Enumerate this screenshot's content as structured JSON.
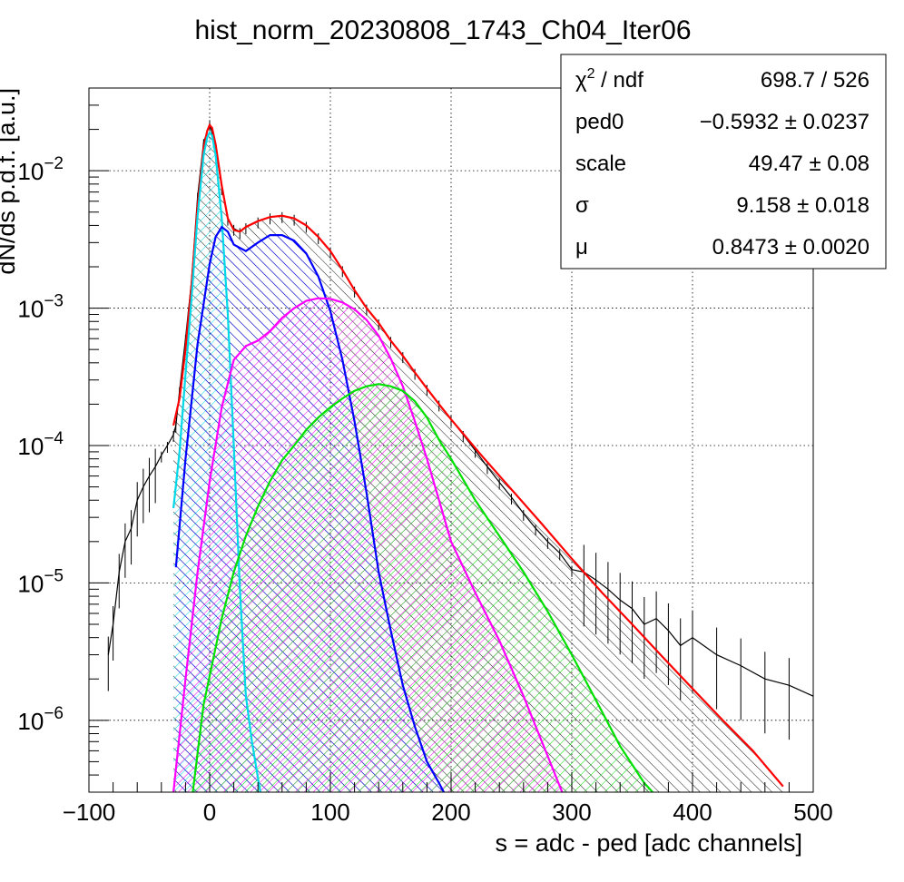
{
  "chart_data": {
    "type": "line",
    "title": "hist_norm_20230808_1743_Ch04_Iter06",
    "xlabel": "s = adc - ped [adc channels]",
    "ylabel": "dN/ds p.d.f. [a.u.]",
    "xlim": [
      -100,
      500
    ],
    "ylim": [
      3e-07,
      0.04
    ],
    "y_scale": "log",
    "grid": true,
    "x_ticks": [
      {
        "value": -100,
        "label": "−100"
      },
      {
        "value": 0,
        "label": "0"
      },
      {
        "value": 100,
        "label": "100"
      },
      {
        "value": 200,
        "label": "200"
      },
      {
        "value": 300,
        "label": "300"
      },
      {
        "value": 400,
        "label": "400"
      },
      {
        "value": 500,
        "label": "500"
      }
    ],
    "y_ticks": [
      {
        "value": 1e-06,
        "base": "10",
        "exp": "−6"
      },
      {
        "value": 1e-05,
        "base": "10",
        "exp": "−5"
      },
      {
        "value": 0.0001,
        "base": "10",
        "exp": "−4"
      },
      {
        "value": 0.001,
        "base": "10",
        "exp": "−3"
      },
      {
        "value": 0.01,
        "base": "10",
        "exp": "−2"
      }
    ],
    "stats_box": {
      "position": "top-right",
      "rows": [
        {
          "label": "χ",
          "label_sup": "2",
          "label_rest": " / ndf",
          "value": "698.7 / 526"
        },
        {
          "label": "ped0",
          "label_sup": "",
          "label_rest": "",
          "value": "−0.5932 ± 0.0237"
        },
        {
          "label": "scale",
          "label_sup": "",
          "label_rest": "",
          "value": "49.47 ± 0.08"
        },
        {
          "label": "σ",
          "label_sup": "",
          "label_rest": "",
          "value": "9.158 ± 0.018"
        },
        {
          "label": "μ",
          "label_sup": "",
          "label_rest": "",
          "value": "0.8473 ± 0.0020"
        }
      ]
    },
    "series": [
      {
        "kind": "histogram",
        "color": "#000000",
        "x": [
          -84,
          -80,
          -75,
          -70,
          -65,
          -60,
          -55,
          -50,
          -45,
          -40,
          -35,
          -30,
          -28,
          -25,
          -20,
          -15,
          -10,
          -5,
          0,
          5,
          10,
          15,
          20,
          25,
          30,
          40,
          50,
          60,
          70,
          80,
          90,
          100,
          110,
          120,
          130,
          140,
          150,
          160,
          170,
          180,
          190,
          200,
          210,
          220,
          230,
          240,
          250,
          260,
          270,
          280,
          290,
          300,
          310,
          320,
          330,
          340,
          350,
          360,
          370,
          380,
          390,
          400,
          420,
          440,
          460,
          480,
          500
        ],
        "y": [
          3e-06,
          5e-06,
          1.2e-05,
          2e-05,
          2.5e-05,
          4e-05,
          5e-05,
          6e-05,
          7e-05,
          8.5e-05,
          0.0001,
          0.00012,
          0.00014,
          0.00025,
          0.0006,
          0.0016,
          0.0065,
          0.016,
          0.022,
          0.015,
          0.0075,
          0.0045,
          0.0038,
          0.0036,
          0.0039,
          0.0043,
          0.0046,
          0.0047,
          0.0045,
          0.004,
          0.0033,
          0.0026,
          0.0019,
          0.00135,
          0.001,
          0.00078,
          0.00058,
          0.00045,
          0.00034,
          0.00026,
          0.0002,
          0.000155,
          0.00012,
          9.2e-05,
          7e-05,
          5.4e-05,
          4.2e-05,
          3.2e-05,
          2.5e-05,
          2e-05,
          1.65e-05,
          1.25e-05,
          1.2e-05,
          1.05e-05,
          9e-06,
          7.5e-06,
          6.5e-06,
          5e-06,
          5.5e-06,
          4.5e-06,
          3.5e-06,
          4e-06,
          3e-06,
          2.5e-06,
          2e-06,
          1.8e-06,
          1.5e-06
        ]
      },
      {
        "kind": "fit-total",
        "color": "#ff0000",
        "x": [
          -30,
          -25,
          -20,
          -15,
          -10,
          -5,
          -2,
          0,
          2,
          5,
          10,
          15,
          20,
          25,
          30,
          40,
          50,
          60,
          70,
          80,
          90,
          100,
          110,
          120,
          130,
          140,
          150,
          160,
          170,
          180,
          190,
          200,
          225,
          250,
          275,
          300,
          325,
          350,
          375,
          400,
          425,
          450,
          475
        ],
        "y": [
          0.00014,
          0.00022,
          0.0005,
          0.0015,
          0.0055,
          0.0145,
          0.0195,
          0.0215,
          0.0205,
          0.0155,
          0.0078,
          0.0045,
          0.0037,
          0.0036,
          0.0039,
          0.0043,
          0.0046,
          0.0047,
          0.0045,
          0.004,
          0.0033,
          0.0026,
          0.0019,
          0.00135,
          0.001,
          0.00078,
          0.00058,
          0.00045,
          0.00034,
          0.00026,
          0.0002,
          0.000155,
          8.5e-05,
          4.8e-05,
          2.7e-05,
          1.5e-05,
          8.5e-06,
          5e-06,
          2.9e-06,
          1.7e-06,
          1e-06,
          6e-07,
          3.3e-07
        ]
      },
      {
        "kind": "component",
        "color": "#00d8e8",
        "x": [
          -30,
          -25,
          -20,
          -15,
          -10,
          -5,
          -2,
          0,
          2,
          5,
          10,
          15,
          20,
          25,
          30,
          35,
          40,
          42
        ],
        "y": [
          3.5e-05,
          9e-05,
          0.00033,
          0.0012,
          0.0047,
          0.013,
          0.0175,
          0.019,
          0.018,
          0.013,
          0.0045,
          0.0009,
          0.0001,
          9e-06,
          1.5e-06,
          7e-07,
          3.8e-07,
          3e-07
        ]
      },
      {
        "kind": "component",
        "color": "#0000ff",
        "x": [
          -28,
          -20,
          -10,
          0,
          5,
          10,
          15,
          20,
          30,
          40,
          50,
          60,
          70,
          80,
          90,
          100,
          110,
          120,
          130,
          140,
          150,
          160,
          170,
          180,
          190,
          194
        ],
        "y": [
          1.3e-05,
          8e-05,
          0.00055,
          0.0021,
          0.0033,
          0.0039,
          0.0036,
          0.0029,
          0.0026,
          0.003,
          0.0034,
          0.0034,
          0.0031,
          0.0025,
          0.0017,
          0.00095,
          0.00042,
          0.00015,
          4.5e-05,
          1.2e-05,
          4.5e-06,
          1.8e-06,
          9e-07,
          5e-07,
          3.5e-07,
          3e-07
        ]
      },
      {
        "kind": "component",
        "color": "#ff00ff",
        "x": [
          -30,
          -20,
          -10,
          0,
          10,
          20,
          30,
          40,
          50,
          60,
          70,
          80,
          90,
          100,
          110,
          120,
          130,
          140,
          150,
          160,
          170,
          180,
          190,
          200,
          220,
          240,
          260,
          280,
          292
        ],
        "y": [
          3e-07,
          2e-06,
          1.2e-05,
          5.5e-05,
          0.00019,
          0.00042,
          0.00053,
          0.00058,
          0.00068,
          0.00085,
          0.001,
          0.00113,
          0.00118,
          0.00117,
          0.0011,
          0.00098,
          0.00082,
          0.00063,
          0.00043,
          0.00027,
          0.00015,
          8e-05,
          4e-05,
          2e-05,
          8.5e-06,
          3.8e-06,
          1.5e-06,
          5.5e-07,
          3e-07
        ]
      },
      {
        "kind": "component",
        "color": "#00e000",
        "x": [
          -14,
          -5,
          10,
          20,
          30,
          40,
          50,
          60,
          70,
          80,
          90,
          100,
          110,
          120,
          130,
          140,
          150,
          160,
          170,
          180,
          190,
          200,
          220,
          240,
          260,
          280,
          300,
          320,
          340,
          360,
          367
        ],
        "y": [
          3e-07,
          1.3e-06,
          5.5e-06,
          1.2e-05,
          2.2e-05,
          3.6e-05,
          5.5e-05,
          7.8e-05,
          0.0001,
          0.00013,
          0.00016,
          0.00019,
          0.00022,
          0.00025,
          0.00027,
          0.00028,
          0.00027,
          0.00025,
          0.00021,
          0.00016,
          0.00011,
          8e-05,
          4e-05,
          2.2e-05,
          1.2e-05,
          6.2e-06,
          3e-06,
          1.4e-06,
          6.5e-07,
          3.5e-07,
          3e-07
        ]
      }
    ]
  }
}
